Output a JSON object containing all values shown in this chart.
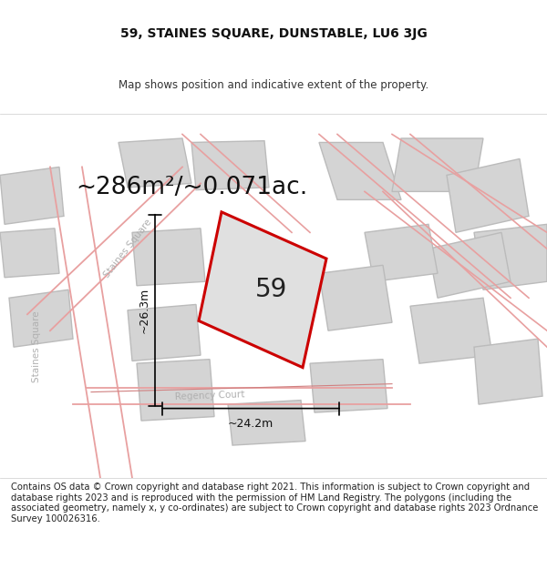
{
  "title_line1": "59, STAINES SQUARE, DUNSTABLE, LU6 3JG",
  "title_line2": "Map shows position and indicative extent of the property.",
  "area_label": "~286m²/~0.071ac.",
  "plot_number": "59",
  "dim_width": "~24.2m",
  "dim_height": "~26.3m",
  "footer": "Contains OS data © Crown copyright and database right 2021. This information is subject to Crown copyright and database rights 2023 and is reproduced with the permission of HM Land Registry. The polygons (including the associated geometry, namely x, y co-ordinates) are subject to Crown copyright and database rights 2023 Ordnance Survey 100026316.",
  "bg_color": "#f2f2f2",
  "plot_fill": "#e0e0e0",
  "plot_outline": "#cc0000",
  "road_color": "#e8a0a0",
  "road_color2": "#d08080",
  "building_fill": "#d4d4d4",
  "building_outline": "#bbbbbb",
  "title_fontsize": 10,
  "subtitle_fontsize": 8.5,
  "area_fontsize": 19,
  "plot_num_fontsize": 20,
  "dim_fontsize": 9,
  "footer_fontsize": 7.2,
  "road_label_color": "#b0b0b0",
  "road_label_size": 7.5
}
